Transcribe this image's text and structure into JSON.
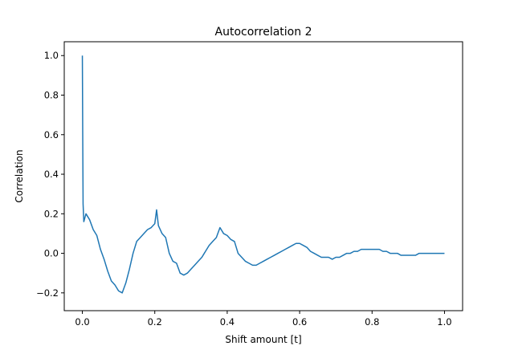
{
  "chart_data": {
    "type": "line",
    "title": "Autocorrelation 2",
    "xlabel": "Shift amount [t]",
    "ylabel": "Correlation",
    "xlim": [
      -0.05,
      1.05
    ],
    "ylim": [
      -0.29,
      1.07
    ],
    "xticks": [
      0.0,
      0.2,
      0.4,
      0.6,
      0.8,
      1.0
    ],
    "xtick_labels": [
      "0.0",
      "0.2",
      "0.4",
      "0.6",
      "0.8",
      "1.0"
    ],
    "yticks": [
      -0.2,
      0.0,
      0.2,
      0.4,
      0.6,
      0.8,
      1.0
    ],
    "ytick_labels": [
      "−0.2",
      "0.0",
      "0.2",
      "0.4",
      "0.6",
      "0.8",
      "1.0"
    ],
    "grid": false,
    "series": [
      {
        "color": "#1f77b4",
        "x": [
          0.0,
          0.001,
          0.002,
          0.004,
          0.01,
          0.02,
          0.03,
          0.04,
          0.05,
          0.06,
          0.07,
          0.08,
          0.09,
          0.1,
          0.11,
          0.12,
          0.13,
          0.14,
          0.15,
          0.16,
          0.17,
          0.18,
          0.19,
          0.2,
          0.205,
          0.21,
          0.22,
          0.23,
          0.24,
          0.25,
          0.26,
          0.27,
          0.28,
          0.29,
          0.3,
          0.31,
          0.32,
          0.33,
          0.34,
          0.35,
          0.36,
          0.37,
          0.38,
          0.39,
          0.4,
          0.41,
          0.42,
          0.43,
          0.44,
          0.45,
          0.46,
          0.47,
          0.48,
          0.49,
          0.5,
          0.51,
          0.52,
          0.53,
          0.54,
          0.55,
          0.56,
          0.57,
          0.58,
          0.59,
          0.6,
          0.61,
          0.62,
          0.63,
          0.64,
          0.65,
          0.66,
          0.67,
          0.68,
          0.69,
          0.7,
          0.71,
          0.72,
          0.73,
          0.74,
          0.75,
          0.76,
          0.77,
          0.78,
          0.79,
          0.8,
          0.81,
          0.82,
          0.83,
          0.84,
          0.85,
          0.86,
          0.87,
          0.88,
          0.89,
          0.9,
          0.91,
          0.92,
          0.93,
          0.94,
          0.95,
          0.96,
          0.97,
          0.98,
          0.99,
          1.0
        ],
        "y": [
          1.0,
          0.6,
          0.25,
          0.16,
          0.2,
          0.17,
          0.12,
          0.09,
          0.02,
          -0.03,
          -0.09,
          -0.14,
          -0.16,
          -0.19,
          -0.2,
          -0.15,
          -0.08,
          0.0,
          0.06,
          0.08,
          0.1,
          0.12,
          0.13,
          0.15,
          0.22,
          0.14,
          0.1,
          0.08,
          0.0,
          -0.04,
          -0.05,
          -0.1,
          -0.11,
          -0.1,
          -0.08,
          -0.06,
          -0.04,
          -0.02,
          0.01,
          0.04,
          0.06,
          0.08,
          0.13,
          0.1,
          0.09,
          0.07,
          0.06,
          0.0,
          -0.02,
          -0.04,
          -0.05,
          -0.06,
          -0.06,
          -0.05,
          -0.04,
          -0.03,
          -0.02,
          -0.01,
          0.0,
          0.01,
          0.02,
          0.03,
          0.04,
          0.05,
          0.05,
          0.04,
          0.03,
          0.01,
          0.0,
          -0.01,
          -0.02,
          -0.02,
          -0.02,
          -0.03,
          -0.02,
          -0.02,
          -0.01,
          0.0,
          0.0,
          0.01,
          0.01,
          0.02,
          0.02,
          0.02,
          0.02,
          0.02,
          0.02,
          0.01,
          0.01,
          0.0,
          0.0,
          0.0,
          -0.01,
          -0.01,
          -0.01,
          -0.01,
          -0.01,
          0.0,
          0.0,
          0.0,
          0.0,
          0.0,
          0.0,
          0.0,
          0.0
        ]
      }
    ]
  }
}
